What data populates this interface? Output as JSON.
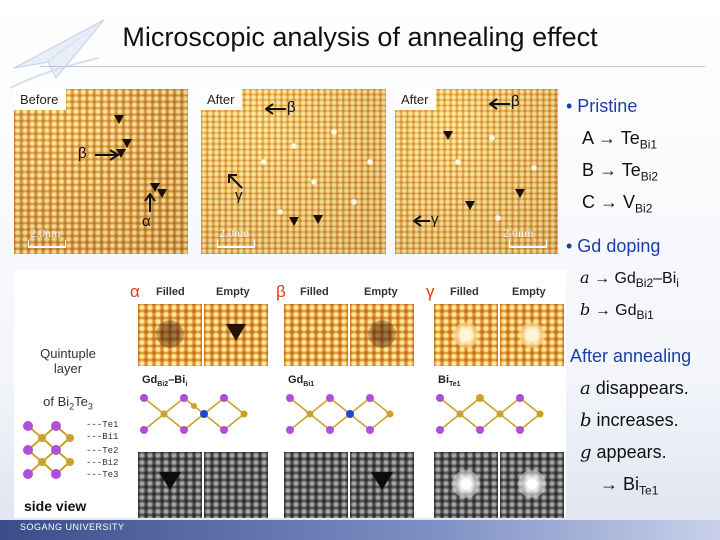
{
  "title": "Microscopic analysis of annealing effect",
  "stm_images": [
    {
      "tag": "Before",
      "scale": "2.0nm",
      "labels": [
        "β",
        "α"
      ]
    },
    {
      "tag": "After",
      "scale": "2.0nm",
      "labels": [
        "β",
        "γ"
      ]
    },
    {
      "tag": "After",
      "scale": "2.0nm",
      "labels": [
        "β",
        "γ"
      ]
    }
  ],
  "panels": {
    "alpha": {
      "symbol": "α",
      "filled": "Filled",
      "empty": "Empty",
      "formula_main": "Gd",
      "formula_sub1": "Bi2",
      "formula_dash": "–Bi",
      "formula_sub2": "i"
    },
    "beta": {
      "symbol": "β",
      "filled": "Filled",
      "empty": "Empty",
      "formula_main": "Gd",
      "formula_sub1": "Bi1"
    },
    "gamma": {
      "symbol": "γ",
      "filled": "Filled",
      "empty": "Empty",
      "formula_main": "Bi",
      "formula_sub1": "Te1"
    }
  },
  "left_caption": {
    "line1": "Quintuple",
    "line2": "layer",
    "line3_prefix": "of Bi",
    "line3_sub1": "2",
    "line3_mid": "Te",
    "line3_sub2": "3",
    "layers": [
      "---Te1",
      "---Bi1",
      "---Te2",
      "---Bi2",
      "---Te3"
    ],
    "side_view": "side view"
  },
  "right_text": {
    "pristine_heading": "• Pristine",
    "pristine_items": [
      {
        "key": "A",
        "main": "Te",
        "sub": "Bi1"
      },
      {
        "key": "B",
        "main": "Te",
        "sub": "Bi2"
      },
      {
        "key": "C",
        "main": "V",
        "sub": "Bi2"
      }
    ],
    "gd_heading": "• Gd doping",
    "gd_items": [
      {
        "glyph": "a",
        "main": "Gd",
        "sub": "Bi2",
        "tail": "–Bi",
        "tail_sub": "i"
      },
      {
        "glyph": "b",
        "main": "Gd",
        "sub": "Bi1"
      }
    ],
    "after_heading": "After annealing",
    "after_items": [
      {
        "glyph": "a",
        "text": "disappears."
      },
      {
        "glyph": "b",
        "text": "increases."
      },
      {
        "glyph": "g",
        "text": "appears."
      }
    ],
    "final_main": "Bi",
    "final_sub": "Te1"
  },
  "footer": "SOGANG UNIVERSITY",
  "colors": {
    "greek_red": "#e03a1c",
    "bond_gold": "#c9a227",
    "atom_purple": "#b04fd8",
    "atom_blue": "#2244cc"
  }
}
